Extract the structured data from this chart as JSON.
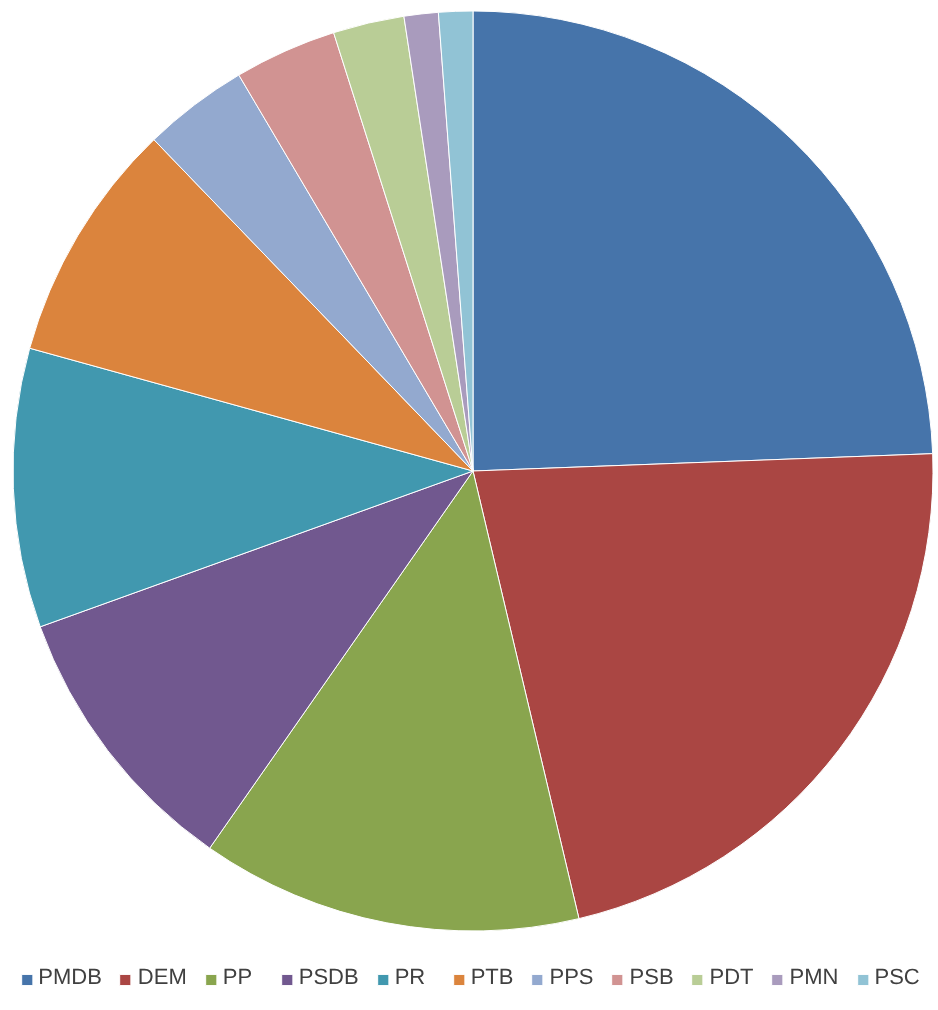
{
  "chart_data": {
    "type": "pie",
    "categories": [
      "PMDB",
      "DEM",
      "PP",
      "PSDB",
      "PR",
      "PTB",
      "PPS",
      "PSB",
      "PDT",
      "PMN",
      "PSC"
    ],
    "values": [
      24.4,
      21.9,
      13.4,
      9.8,
      9.8,
      8.5,
      3.7,
      3.6,
      2.5,
      1.2,
      1.2
    ],
    "colors": [
      "#4674aa",
      "#aa4643",
      "#89a54e",
      "#71588f",
      "#4198af",
      "#db843d",
      "#93a9cf",
      "#d19392",
      "#b9cd96",
      "#a99bbd",
      "#91c3d5"
    ],
    "legend": "bottom"
  }
}
